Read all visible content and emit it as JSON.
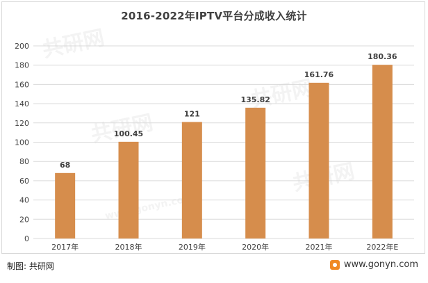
{
  "chart_data": {
    "type": "bar",
    "title": "2016-2022年IPTV平台分成收入统计",
    "categories": [
      "2017年",
      "2018年",
      "2019年",
      "2020年",
      "2021年",
      "2022年E"
    ],
    "values": [
      68,
      100.45,
      121,
      135.82,
      161.76,
      180.36
    ],
    "value_labels": [
      "68",
      "100.45",
      "121",
      "135.82",
      "161.76",
      "180.36"
    ],
    "yticks": [
      "0",
      "20",
      "40",
      "60",
      "80",
      "100",
      "120",
      "140",
      "160",
      "180",
      "200"
    ],
    "ylim": [
      0,
      200
    ],
    "ystep": 20,
    "bar_color": "#d68d4c",
    "grid": true,
    "grid_color": "#d9d9d9"
  },
  "footer": {
    "source": "制图: 共研网",
    "website": "www.gonyn.com"
  },
  "watermark": {
    "text": "共研网",
    "subtext": "www.gonyn.com",
    "icon": "gonyn-logo-icon"
  }
}
